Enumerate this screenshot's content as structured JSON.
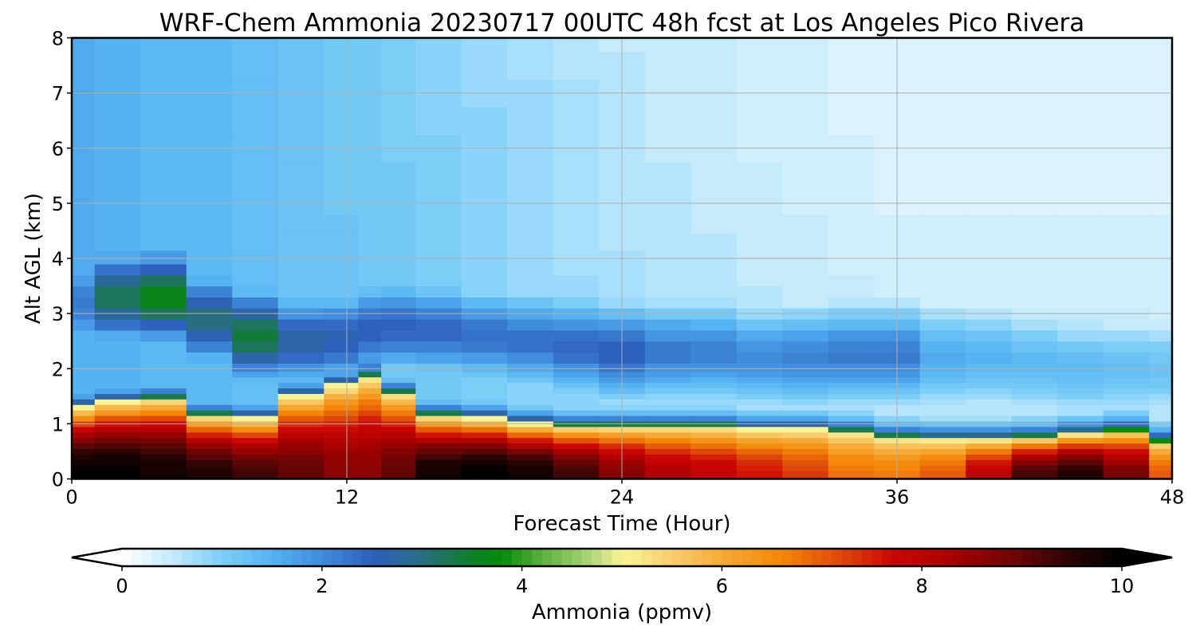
{
  "chart_data": {
    "type": "heatmap",
    "title": "WRF-Chem Ammonia  20230717 00UTC 48h fcst at Los Angeles Pico Rivera",
    "xlabel": "Forecast Time (Hour)",
    "ylabel": "Alt AGL (km)",
    "xlim": [
      0,
      48
    ],
    "ylim": [
      0,
      8
    ],
    "x_ticks": [
      "0",
      "12",
      "24",
      "36",
      "48"
    ],
    "y_ticks": [
      "0",
      "1",
      "2",
      "3",
      "4",
      "5",
      "6",
      "7",
      "8"
    ],
    "grid": true,
    "colorbar": {
      "label": "Ammonia  (ppmv)",
      "min": 0,
      "max": 10,
      "ticks": [
        "0",
        "2",
        "4",
        "6",
        "8",
        "10"
      ],
      "extend": "both",
      "orientation": "horizontal"
    },
    "hours": [
      0,
      2,
      4,
      6,
      8,
      10,
      12,
      13,
      14,
      16,
      18,
      20,
      22,
      24,
      26,
      28,
      30,
      32,
      34,
      36,
      38,
      40,
      42,
      44,
      46,
      48
    ],
    "altitudes_km": [
      0,
      0.1,
      0.2,
      0.3,
      0.4,
      0.5,
      0.6,
      0.7,
      0.8,
      0.9,
      1.0,
      1.1,
      1.2,
      1.3,
      1.4,
      1.5,
      1.6,
      1.7,
      1.8,
      1.9,
      2.0,
      2.2,
      2.4,
      2.6,
      2.8,
      3.0,
      3.2,
      3.4,
      3.6,
      3.8,
      4.0,
      4.3,
      4.6,
      5.0,
      5.5,
      6.0,
      6.5,
      7.0,
      7.5,
      8.0
    ],
    "profiles": {
      "boundary_layer_top_km": [
        1.3,
        1.4,
        1.45,
        1.15,
        1.1,
        1.5,
        1.7,
        1.85,
        1.55,
        1.15,
        1.1,
        1.0,
        0.95,
        0.95,
        0.95,
        0.95,
        0.9,
        0.9,
        0.85,
        0.75,
        0.72,
        0.72,
        0.75,
        0.82,
        0.88,
        0.68
      ],
      "surface_ammonia_ppmv": [
        10.0,
        10.0,
        9.8,
        9.6,
        9.3,
        9.0,
        8.6,
        8.6,
        9.0,
        9.8,
        10.0,
        9.8,
        9.3,
        8.7,
        8.2,
        7.9,
        7.6,
        7.3,
        6.8,
        6.7,
        7.0,
        8.0,
        9.3,
        9.6,
        8.8,
        7.0
      ],
      "aloft_layer_center_km": [
        3.2,
        3.3,
        3.3,
        2.9,
        2.6,
        2.5,
        2.55,
        2.7,
        2.75,
        2.7,
        2.6,
        2.5,
        2.4,
        2.3,
        2.3,
        2.3,
        2.2,
        2.2,
        2.25,
        2.25,
        2.2,
        2.2,
        2.1,
        2.0,
        2.0,
        2.0
      ],
      "aloft_layer_max_ppmv": [
        2.2,
        3.2,
        3.6,
        3.0,
        3.4,
        2.7,
        2.6,
        2.5,
        2.5,
        2.4,
        2.3,
        2.3,
        2.4,
        2.5,
        2.2,
        2.1,
        2.0,
        2.1,
        2.2,
        2.2,
        1.6,
        1.5,
        1.4,
        1.35,
        1.3,
        1.2
      ],
      "upper_background_ppmv": [
        1.6,
        1.5,
        1.4,
        1.35,
        1.25,
        1.2,
        1.1,
        1.05,
        1.0,
        0.9,
        0.8,
        0.7,
        0.6,
        0.5,
        0.45,
        0.4,
        0.35,
        0.3,
        0.25,
        0.2,
        0.2,
        0.2,
        0.2,
        0.2,
        0.2,
        0.2
      ]
    }
  }
}
